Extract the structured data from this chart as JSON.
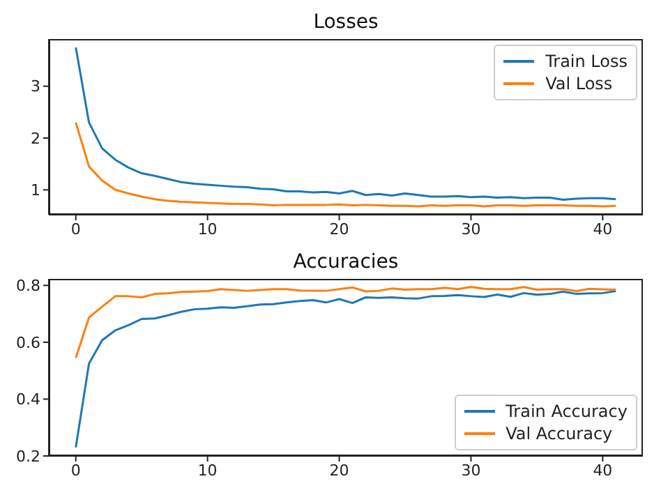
{
  "chart_data": [
    {
      "type": "line",
      "title": "Losses",
      "x": [
        0,
        1,
        2,
        3,
        4,
        5,
        6,
        7,
        8,
        9,
        10,
        11,
        12,
        13,
        14,
        15,
        16,
        17,
        18,
        19,
        20,
        21,
        22,
        23,
        24,
        25,
        26,
        27,
        28,
        29,
        30,
        31,
        32,
        33,
        34,
        35,
        36,
        37,
        38,
        39,
        40,
        41
      ],
      "series": [
        {
          "name": "Train Loss",
          "color": "#1f77b4",
          "values": [
            3.75,
            2.3,
            1.8,
            1.58,
            1.43,
            1.32,
            1.27,
            1.21,
            1.15,
            1.12,
            1.1,
            1.08,
            1.06,
            1.05,
            1.02,
            1.01,
            0.97,
            0.97,
            0.95,
            0.96,
            0.93,
            0.98,
            0.9,
            0.92,
            0.89,
            0.93,
            0.9,
            0.87,
            0.87,
            0.88,
            0.86,
            0.87,
            0.85,
            0.86,
            0.84,
            0.85,
            0.85,
            0.81,
            0.83,
            0.84,
            0.84,
            0.82
          ]
        },
        {
          "name": "Val Loss",
          "color": "#ff7f0e",
          "values": [
            2.3,
            1.45,
            1.18,
            1.0,
            0.93,
            0.87,
            0.82,
            0.79,
            0.77,
            0.76,
            0.75,
            0.74,
            0.73,
            0.73,
            0.72,
            0.7,
            0.71,
            0.71,
            0.71,
            0.71,
            0.72,
            0.7,
            0.71,
            0.7,
            0.69,
            0.69,
            0.68,
            0.7,
            0.69,
            0.7,
            0.7,
            0.68,
            0.7,
            0.7,
            0.69,
            0.7,
            0.7,
            0.7,
            0.69,
            0.69,
            0.68,
            0.69
          ]
        }
      ],
      "xlim": [
        -2.05,
        43.05
      ],
      "xticks": [
        0,
        10,
        20,
        30,
        40
      ],
      "ylim": [
        0.52,
        3.91
      ],
      "yticks": [
        1,
        2,
        3
      ],
      "legend": "top right",
      "grid": false,
      "marker": "none",
      "line_style": "solid"
    },
    {
      "type": "line",
      "title": "Accuracies",
      "x": [
        0,
        1,
        2,
        3,
        4,
        5,
        6,
        7,
        8,
        9,
        10,
        11,
        12,
        13,
        14,
        15,
        16,
        17,
        18,
        19,
        20,
        21,
        22,
        23,
        24,
        25,
        26,
        27,
        28,
        29,
        30,
        31,
        32,
        33,
        34,
        35,
        36,
        37,
        38,
        39,
        40,
        41
      ],
      "series": [
        {
          "name": "Train Accuracy",
          "color": "#1f77b4",
          "values": [
            0.23,
            0.525,
            0.607,
            0.642,
            0.66,
            0.682,
            0.684,
            0.695,
            0.707,
            0.716,
            0.718,
            0.723,
            0.721,
            0.727,
            0.733,
            0.734,
            0.74,
            0.745,
            0.748,
            0.74,
            0.752,
            0.738,
            0.758,
            0.756,
            0.758,
            0.755,
            0.754,
            0.762,
            0.763,
            0.766,
            0.762,
            0.759,
            0.768,
            0.76,
            0.773,
            0.767,
            0.77,
            0.778,
            0.77,
            0.772,
            0.773,
            0.78
          ]
        },
        {
          "name": "Val Accuracy",
          "color": "#ff7f0e",
          "values": [
            0.545,
            0.687,
            0.725,
            0.762,
            0.762,
            0.758,
            0.77,
            0.772,
            0.777,
            0.778,
            0.78,
            0.787,
            0.784,
            0.781,
            0.784,
            0.787,
            0.787,
            0.782,
            0.781,
            0.781,
            0.787,
            0.793,
            0.779,
            0.781,
            0.789,
            0.785,
            0.787,
            0.787,
            0.792,
            0.787,
            0.795,
            0.788,
            0.787,
            0.787,
            0.794,
            0.785,
            0.787,
            0.787,
            0.78,
            0.788,
            0.786,
            0.785
          ]
        }
      ],
      "xlim": [
        -2.05,
        43.05
      ],
      "xticks": [
        0,
        10,
        20,
        30,
        40
      ],
      "ylim": [
        0.2,
        0.823
      ],
      "yticks": [
        0.2,
        0.4,
        0.6,
        0.8
      ],
      "legend": "bottom right",
      "grid": false,
      "marker": "none",
      "line_style": "solid"
    }
  ]
}
